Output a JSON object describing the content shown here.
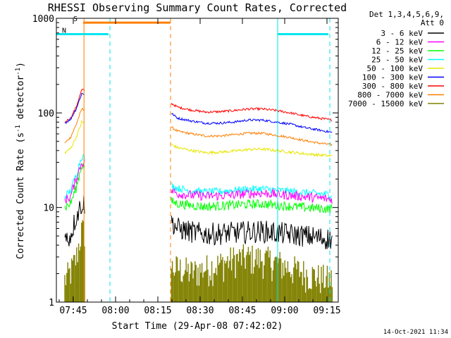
{
  "chart_data": {
    "type": "line",
    "title": "RHESSI Observing Summary Count Rates, Corrected",
    "xlabel": "Start Time (29-Apr-08 07:42:02)",
    "ylabel_main": "Corrected Count Rate (s",
    "ylabel_sup1": "-1",
    "ylabel_mid": " detector",
    "ylabel_sup2": "-1",
    "ylabel_end": ")",
    "footer": "14-Oct-2021 11:34",
    "x_unit": "minutes after 07:42:02",
    "x_range": [
      -3,
      97
    ],
    "y_scale": "log",
    "y_range": [
      1,
      1000
    ],
    "x_ticks": [
      {
        "label": "07:45",
        "value": 3
      },
      {
        "label": "08:00",
        "value": 18
      },
      {
        "label": "08:15",
        "value": 33
      },
      {
        "label": "08:30",
        "value": 48
      },
      {
        "label": "08:45",
        "value": 63
      },
      {
        "label": "09:00",
        "value": 78
      },
      {
        "label": "09:15",
        "value": 93
      }
    ],
    "y_ticks": [
      {
        "label": "1",
        "value": 1
      },
      {
        "label": "10",
        "value": 10
      },
      {
        "label": "100",
        "value": 100
      },
      {
        "label": "1000",
        "value": 1000
      }
    ],
    "legend_header": [
      "Det 1,3,4,5,6,9,",
      "Att 0"
    ],
    "flags": [
      {
        "label": "S",
        "color": "#ff7f00",
        "level": 900,
        "x_start": 6.5,
        "x_end": 37.5
      },
      {
        "label": "N",
        "color": "#00e5ee",
        "level": 680,
        "x_start": -3,
        "x_end": 15.5
      },
      {
        "label": "",
        "color": "#00e5ee",
        "level": 680,
        "x_start": 75.5,
        "x_end": 93.5
      }
    ],
    "vertical_lines": [
      {
        "x": 6.8,
        "color": "#ff7f00",
        "style": "solid"
      },
      {
        "x": 16.0,
        "color": "#00e5ee",
        "style": "dashed"
      },
      {
        "x": 37.5,
        "color": "#ff7f00",
        "style": "dashed"
      },
      {
        "x": 75.5,
        "color": "#00e5ee",
        "style": "solid"
      },
      {
        "x": 94.0,
        "color": "#00e5ee",
        "style": "dashed"
      }
    ],
    "data_gap": [
      7.0,
      37.8
    ],
    "series": [
      {
        "name": "3 - 6 keV",
        "color": "#000000",
        "noise": 0.12,
        "x": [
          0,
          2,
          4,
          6,
          38,
          40,
          45,
          50,
          55,
          60,
          65,
          70,
          75,
          80,
          85,
          90,
          95
        ],
        "y": [
          4.5,
          5,
          8,
          11,
          7,
          6,
          5.5,
          5.2,
          5.3,
          5.4,
          5.5,
          5.6,
          5.4,
          5.2,
          5.0,
          4.8,
          4.6
        ]
      },
      {
        "name": "6 - 12 keV",
        "color": "#ff00ff",
        "noise": 0.05,
        "x": [
          0,
          2,
          4,
          6,
          38,
          40,
          45,
          50,
          55,
          60,
          65,
          70,
          75,
          80,
          85,
          90,
          95
        ],
        "y": [
          12,
          13,
          20,
          30,
          15,
          14,
          13.5,
          13.2,
          13.3,
          13.6,
          14,
          14.2,
          13.8,
          13.4,
          13,
          12.6,
          12.2
        ]
      },
      {
        "name": "12 - 25 keV",
        "color": "#00ff00",
        "noise": 0.05,
        "x": [
          0,
          2,
          4,
          6,
          38,
          40,
          45,
          50,
          55,
          60,
          65,
          70,
          75,
          80,
          85,
          90,
          95
        ],
        "y": [
          10,
          11,
          16,
          28,
          11.5,
          11,
          10.5,
          10.2,
          10.4,
          10.6,
          10.8,
          10.9,
          10.6,
          10.3,
          10,
          9.8,
          9.6
        ]
      },
      {
        "name": "25 - 50 keV",
        "color": "#00ffff",
        "noise": 0.04,
        "x": [
          0,
          2,
          4,
          6,
          38,
          40,
          45,
          50,
          55,
          60,
          65,
          70,
          75,
          80,
          85,
          90,
          95
        ],
        "y": [
          13,
          15,
          22,
          35,
          17,
          16,
          15,
          14.6,
          14.8,
          15.2,
          15.6,
          15.8,
          15.3,
          14.8,
          14.4,
          14,
          13.6
        ]
      },
      {
        "name": "50 - 100 keV",
        "color": "#e6e600",
        "noise": 0.015,
        "x": [
          0,
          2,
          4,
          6,
          38,
          40,
          45,
          50,
          55,
          60,
          65,
          70,
          75,
          80,
          85,
          90,
          95
        ],
        "y": [
          38,
          42,
          55,
          80,
          46,
          43,
          40,
          38,
          38.5,
          39.5,
          41,
          41.5,
          40,
          38.5,
          37,
          36,
          35
        ]
      },
      {
        "name": "100 - 300 keV",
        "color": "#0000ff",
        "noise": 0.012,
        "x": [
          0,
          2,
          4,
          6,
          38,
          40,
          45,
          50,
          55,
          60,
          65,
          70,
          75,
          80,
          85,
          90,
          95
        ],
        "y": [
          78,
          85,
          110,
          160,
          98,
          88,
          82,
          78,
          78,
          80,
          84,
          84,
          80,
          76,
          70,
          66,
          62
        ]
      },
      {
        "name": "300 - 800 keV",
        "color": "#ff0000",
        "noise": 0.012,
        "x": [
          0,
          2,
          4,
          6,
          38,
          40,
          45,
          50,
          55,
          60,
          65,
          70,
          75,
          80,
          85,
          90,
          95
        ],
        "y": [
          80,
          88,
          115,
          175,
          125,
          115,
          107,
          102,
          103,
          106,
          110,
          110,
          106,
          100,
          93,
          88,
          84
        ]
      },
      {
        "name": "800 - 7000 keV",
        "color": "#ff7f00",
        "noise": 0.012,
        "x": [
          0,
          2,
          4,
          6,
          38,
          40,
          45,
          50,
          55,
          60,
          65,
          70,
          75,
          80,
          85,
          90,
          95
        ],
        "y": [
          48,
          55,
          75,
          110,
          70,
          64,
          60,
          57,
          57,
          59,
          61,
          61,
          58,
          55,
          51,
          48,
          46
        ]
      },
      {
        "name": "7000 - 15000 keV",
        "color": "#808000",
        "noise": 0.0,
        "x": [
          0,
          2,
          4,
          6,
          38,
          40,
          45,
          50,
          55,
          60,
          65,
          70,
          75,
          80,
          85,
          90,
          95
        ],
        "y": [
          1.5,
          1.8,
          2.5,
          5,
          2,
          2,
          1.8,
          2,
          2.2,
          2.5,
          2.6,
          2.5,
          2.3,
          2,
          1.8,
          1.6,
          1.5
        ]
      }
    ]
  }
}
